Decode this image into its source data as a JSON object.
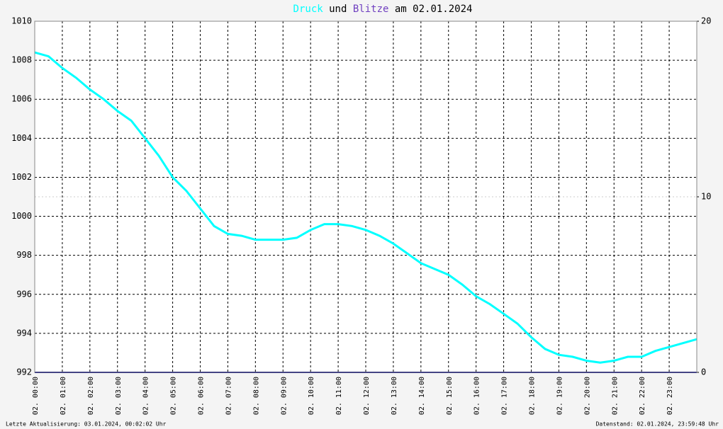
{
  "chart_data": {
    "type": "line",
    "title_parts": [
      "Druck",
      "und",
      "Blitze",
      "am 02.01.2024"
    ],
    "footer_left": "Letzte Aktualisierung: 03.01.2024, 00:02:02 Uhr",
    "footer_right": "Datenstand: 02.01.2024, 23:59:48 Uhr",
    "x": [
      0,
      0.5,
      1,
      1.5,
      2,
      2.5,
      3,
      3.5,
      4,
      4.5,
      5,
      5.5,
      6,
      6.5,
      7,
      7.5,
      8,
      8.5,
      9,
      9.5,
      10,
      10.5,
      11,
      11.5,
      12,
      12.5,
      13,
      13.5,
      14,
      14.5,
      15,
      15.5,
      16,
      16.5,
      17,
      17.5,
      18,
      18.5,
      19,
      19.5,
      20,
      20.5,
      21,
      21.5,
      22,
      22.5,
      23,
      23.5,
      24
    ],
    "series": [
      {
        "name": "Druck",
        "color": "#00ffff",
        "values": [
          1008.4,
          1008.2,
          1007.6,
          1007.1,
          1006.5,
          1006.0,
          1005.4,
          1004.9,
          1004.0,
          1003.1,
          1002.0,
          1001.3,
          1000.4,
          999.5,
          999.1,
          999.0,
          998.8,
          998.8,
          998.8,
          998.9,
          999.3,
          999.6,
          999.6,
          999.5,
          999.3,
          999.0,
          998.6,
          998.1,
          997.6,
          997.3,
          997.0,
          996.5,
          995.9,
          995.5,
          995.0,
          994.5,
          993.8,
          993.2,
          992.9,
          992.8,
          992.6,
          992.5,
          992.6,
          992.8,
          992.8,
          993.1,
          993.3,
          993.5,
          993.7
        ]
      },
      {
        "name": "Blitze",
        "color": "#7040c0",
        "axis": "y2",
        "line_color": "#000080",
        "values": [
          0,
          0,
          0,
          0,
          0,
          0,
          0,
          0,
          0,
          0,
          0,
          0,
          0,
          0,
          0,
          0,
          0,
          0,
          0,
          0,
          0,
          0,
          0,
          0,
          0,
          0,
          0,
          0,
          0,
          0,
          0,
          0,
          0,
          0,
          0,
          0,
          0,
          0,
          0,
          0,
          0,
          0,
          0,
          0,
          0,
          0,
          0,
          0,
          0
        ]
      }
    ],
    "xlim": [
      0,
      24
    ],
    "xticks": [
      {
        "value": 0,
        "label": "02. 00:00"
      },
      {
        "value": 1,
        "label": "02. 01:00"
      },
      {
        "value": 2,
        "label": "02. 02:00"
      },
      {
        "value": 3,
        "label": "02. 03:00"
      },
      {
        "value": 4,
        "label": "02. 04:00"
      },
      {
        "value": 5,
        "label": "02. 05:00"
      },
      {
        "value": 6,
        "label": "02. 06:00"
      },
      {
        "value": 7,
        "label": "02. 07:00"
      },
      {
        "value": 8,
        "label": "02. 08:00"
      },
      {
        "value": 9,
        "label": "02. 09:00"
      },
      {
        "value": 10,
        "label": "02. 10:00"
      },
      {
        "value": 11,
        "label": "02. 11:00"
      },
      {
        "value": 12,
        "label": "02. 12:00"
      },
      {
        "value": 13,
        "label": "02. 13:00"
      },
      {
        "value": 14,
        "label": "02. 14:00"
      },
      {
        "value": 15,
        "label": "02. 15:00"
      },
      {
        "value": 16,
        "label": "02. 16:00"
      },
      {
        "value": 17,
        "label": "02. 17:00"
      },
      {
        "value": 18,
        "label": "02. 18:00"
      },
      {
        "value": 19,
        "label": "02. 19:00"
      },
      {
        "value": 20,
        "label": "02. 20:00"
      },
      {
        "value": 21,
        "label": "02. 21:00"
      },
      {
        "value": 22,
        "label": "02. 22:00"
      },
      {
        "value": 23,
        "label": "02. 23:00"
      }
    ],
    "ylim": [
      992,
      1010
    ],
    "yticks": [
      992,
      994,
      996,
      998,
      1000,
      1002,
      1004,
      1006,
      1008,
      1010
    ],
    "y2lim": [
      0,
      20
    ],
    "y2ticks": [
      0,
      10,
      20
    ],
    "grid": true
  }
}
